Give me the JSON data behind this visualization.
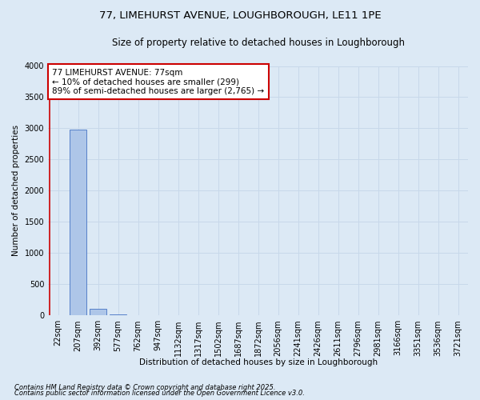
{
  "title": "77, LIMEHURST AVENUE, LOUGHBOROUGH, LE11 1PE",
  "subtitle": "Size of property relative to detached houses in Loughborough",
  "xlabel": "Distribution of detached houses by size in Loughborough",
  "ylabel": "Number of detached properties",
  "categories": [
    "22sqm",
    "207sqm",
    "392sqm",
    "577sqm",
    "762sqm",
    "947sqm",
    "1132sqm",
    "1317sqm",
    "1502sqm",
    "1687sqm",
    "1872sqm",
    "2056sqm",
    "2241sqm",
    "2426sqm",
    "2611sqm",
    "2796sqm",
    "2981sqm",
    "3166sqm",
    "3351sqm",
    "3536sqm",
    "3721sqm"
  ],
  "values": [
    5,
    2985,
    113,
    18,
    8,
    4,
    2,
    2,
    1,
    1,
    1,
    1,
    1,
    1,
    0,
    0,
    0,
    0,
    0,
    0,
    0
  ],
  "bar_color": "#aec6e8",
  "bar_edge_color": "#4472c4",
  "highlight_bar_index": 0,
  "highlight_color": "#cc0000",
  "annotation_text": "77 LIMEHURST AVENUE: 77sqm\n← 10% of detached houses are smaller (299)\n89% of semi-detached houses are larger (2,765) →",
  "annotation_box_color": "#ffffff",
  "annotation_edge_color": "#cc0000",
  "ylim": [
    0,
    4000
  ],
  "yticks": [
    0,
    500,
    1000,
    1500,
    2000,
    2500,
    3000,
    3500,
    4000
  ],
  "background_color": "#dce9f5",
  "grid_color": "#c8d8ea",
  "footer1": "Contains HM Land Registry data © Crown copyright and database right 2025.",
  "footer2": "Contains public sector information licensed under the Open Government Licence v3.0.",
  "title_fontsize": 9.5,
  "subtitle_fontsize": 8.5,
  "ylabel_fontsize": 7.5,
  "xlabel_fontsize": 7.5,
  "tick_fontsize": 7,
  "annotation_fontsize": 7.5,
  "footer_fontsize": 6
}
